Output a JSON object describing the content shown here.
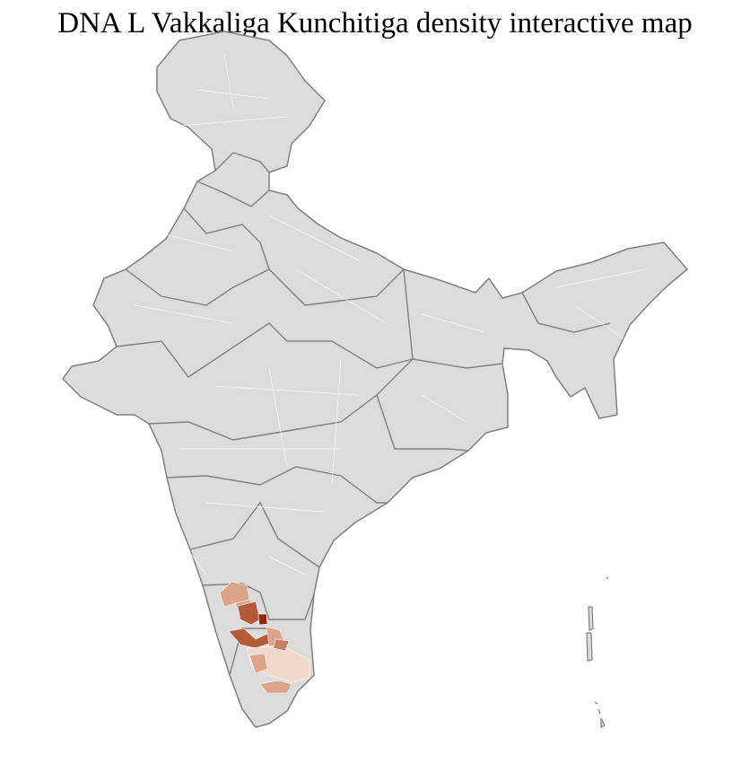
{
  "title": "DNA L Vakkaliga Kunchitiga density interactive map",
  "colors": {
    "land": "#dcdcdc",
    "state_border": "#808080",
    "district_border": "#ffffff",
    "density_low": "#f0d8cc",
    "density_mid_low": "#dca48a",
    "density_mid": "#c98062",
    "density_high": "#b65b3a",
    "density_max": "#8e2a08"
  }
}
